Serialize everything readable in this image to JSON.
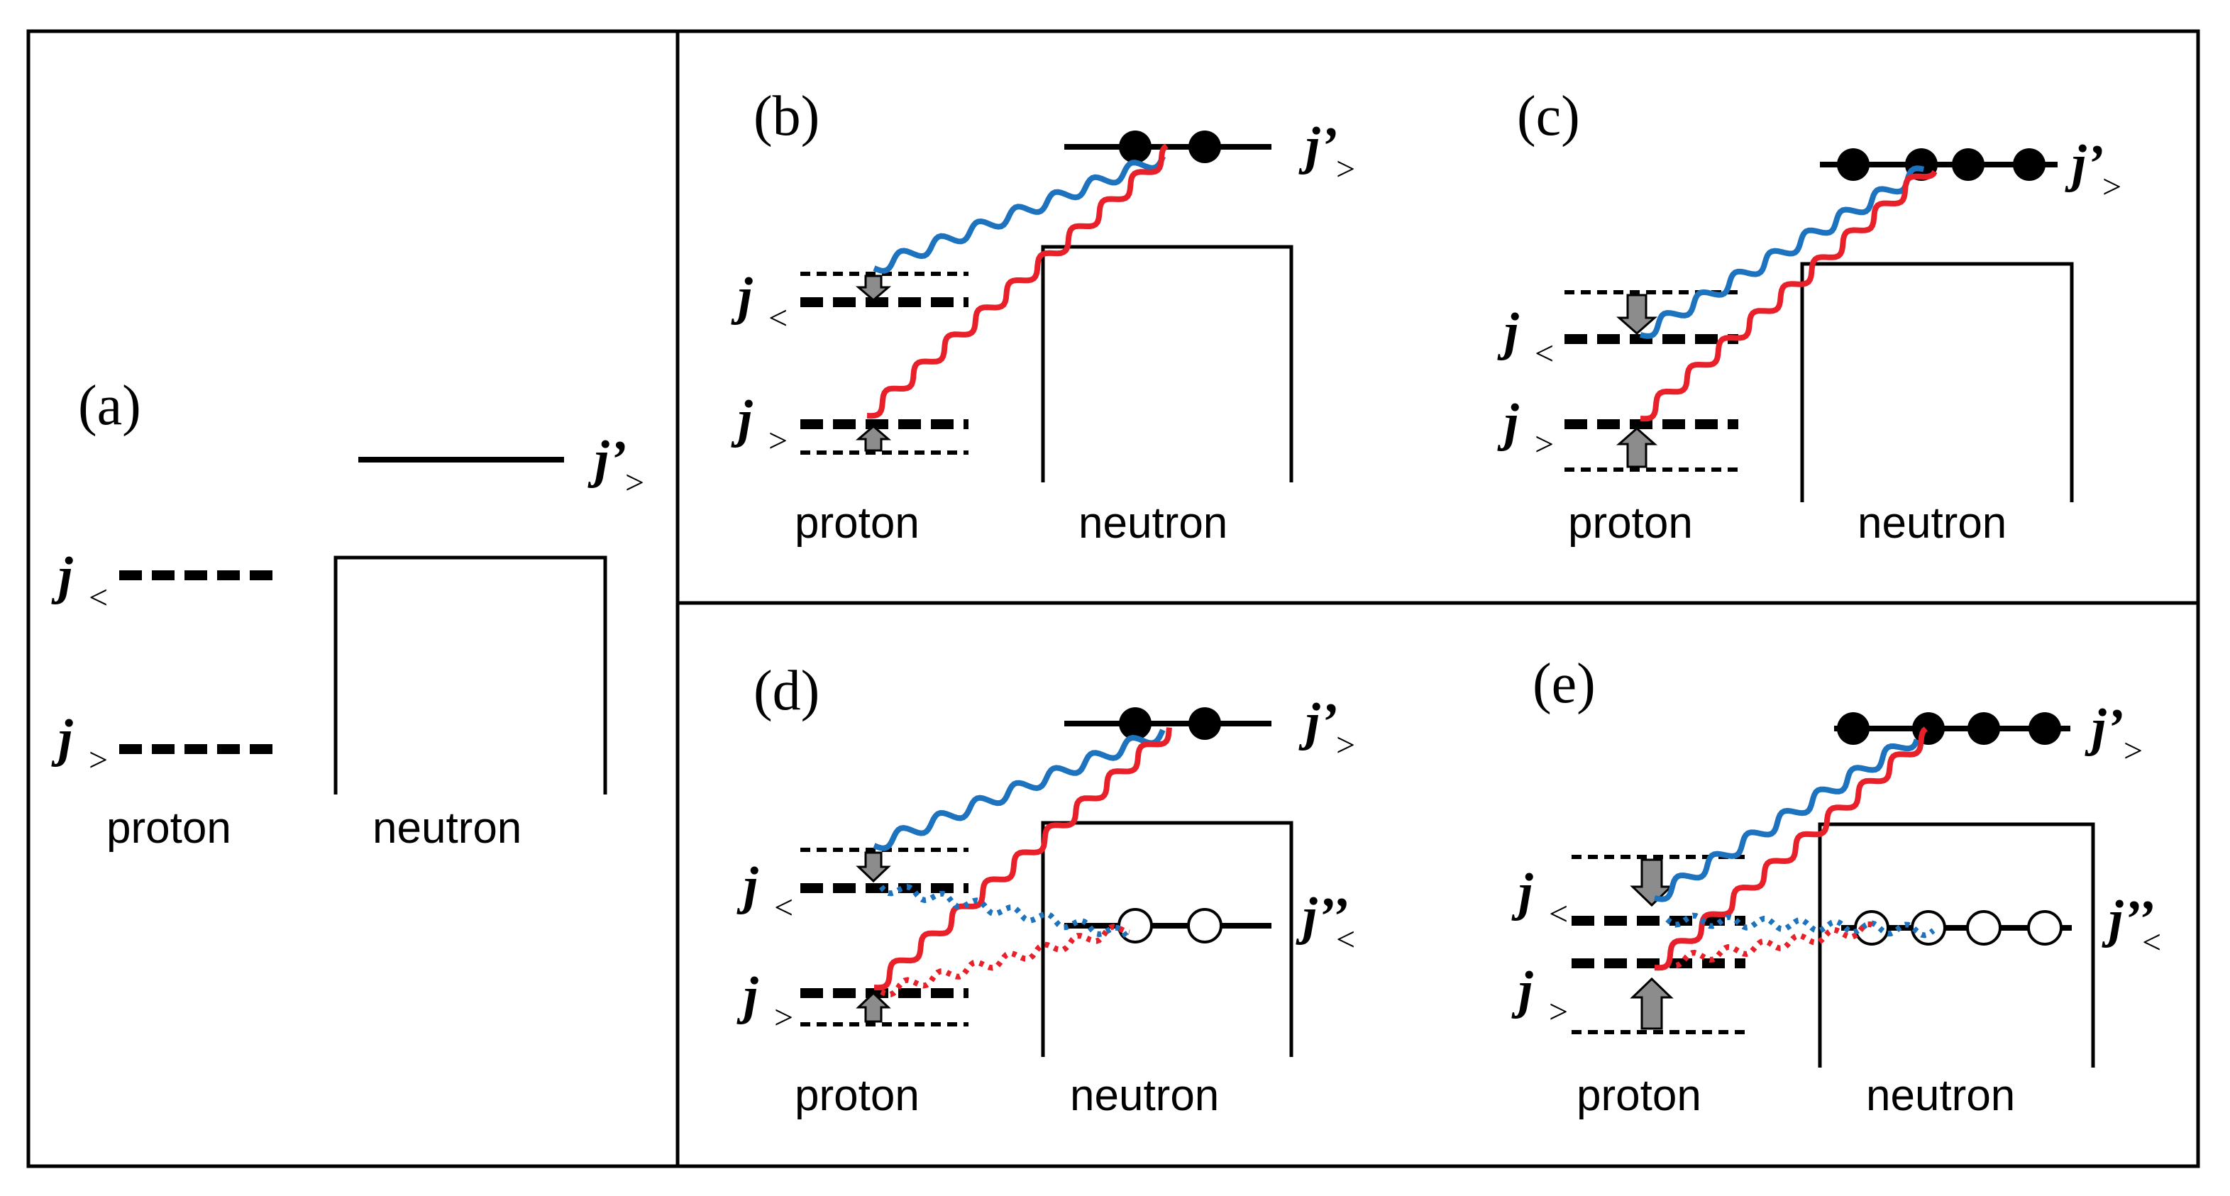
{
  "panels": [
    {
      "id": "a",
      "tag": "(a)",
      "proton_label": "proton",
      "neutron_label": "neutron",
      "j_less": "j",
      "j_less_sub": "<",
      "j_greater": "j",
      "j_greater_sub": ">",
      "j_prime": "j’",
      "j_prime_sub": ">"
    },
    {
      "id": "b",
      "tag": "(b)",
      "proton_label": "proton",
      "neutron_label": "neutron",
      "j_less": "j",
      "j_less_sub": "<",
      "j_greater": "j",
      "j_greater_sub": ">",
      "j_prime": "j’",
      "j_prime_sub": ">"
    },
    {
      "id": "c",
      "tag": "(c)",
      "proton_label": "proton",
      "neutron_label": "neutron",
      "j_less": "j",
      "j_less_sub": "<",
      "j_greater": "j",
      "j_greater_sub": ">",
      "j_prime": "j’",
      "j_prime_sub": ">"
    },
    {
      "id": "d",
      "tag": "(d)",
      "proton_label": "proton",
      "neutron_label": "neutron",
      "j_less": "j",
      "j_less_sub": "<",
      "j_greater": "j",
      "j_greater_sub": ">",
      "j_prime": "j’",
      "j_prime_sub": ">",
      "j_dprime": "j’’",
      "j_dprime_sub": "<"
    },
    {
      "id": "e",
      "tag": "(e)",
      "proton_label": "proton",
      "neutron_label": "neutron",
      "j_less": "j",
      "j_less_sub": "<",
      "j_greater": "j",
      "j_greater_sub": ">",
      "j_prime": "j’",
      "j_prime_sub": ">",
      "j_dprime": "j’’",
      "j_dprime_sub": "<"
    }
  ],
  "colors": {
    "tensor_wave": "#1e73be",
    "central_wave": "#e8202a",
    "arrow_fill": "#8c8c8c",
    "line": "#000000"
  },
  "icons": [
    "filled-nucleon-icon",
    "hole-circle-icon",
    "down-arrow-icon",
    "up-arrow-icon"
  ]
}
